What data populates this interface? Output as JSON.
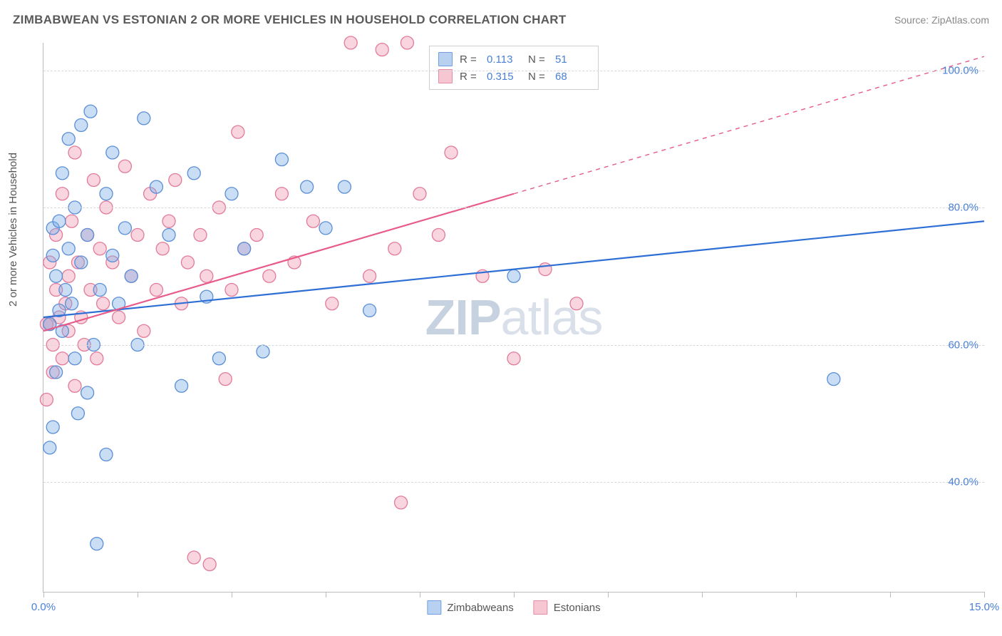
{
  "title": "ZIMBABWEAN VS ESTONIAN 2 OR MORE VEHICLES IN HOUSEHOLD CORRELATION CHART",
  "source": "Source: ZipAtlas.com",
  "ylabel": "2 or more Vehicles in Household",
  "watermark_bold": "ZIP",
  "watermark_light": "atlas",
  "chart": {
    "type": "scatter-with-regression",
    "background_color": "#ffffff",
    "grid_color": "#d8d8d8",
    "axis_color": "#bdbdbd",
    "tick_label_color": "#4a80d8",
    "xlim": [
      0.0,
      15.0
    ],
    "ylim": [
      24.0,
      104.0
    ],
    "x_ticks": [
      0.0,
      1.5,
      3.0,
      4.5,
      6.0,
      7.5,
      9.0,
      10.5,
      12.0,
      13.5,
      15.0
    ],
    "x_tick_labels": {
      "0": "0.0%",
      "15": "15.0%"
    },
    "y_grid": [
      40.0,
      60.0,
      80.0,
      100.0
    ],
    "y_tick_labels": [
      "40.0%",
      "60.0%",
      "80.0%",
      "100.0%"
    ]
  },
  "top_legend": [
    {
      "fill": "#b8d1f0",
      "stroke": "#6f9fe0",
      "r_label": "R =",
      "r_value": "0.113",
      "n_label": "N =",
      "n_value": "51"
    },
    {
      "fill": "#f6c6d3",
      "stroke": "#e68aa5",
      "r_label": "R =",
      "r_value": "0.315",
      "n_label": "N =",
      "n_value": "68"
    }
  ],
  "bottom_legend": [
    {
      "fill": "#b8d1f0",
      "stroke": "#6f9fe0",
      "label": "Zimbabweans"
    },
    {
      "fill": "#f6c6d3",
      "stroke": "#e68aa5",
      "label": "Estonians"
    }
  ],
  "series": {
    "zimbabweans": {
      "fill": "rgba(120,170,230,0.40)",
      "stroke": "#5b8fd6",
      "stroke_width": 1.3,
      "radius": 9,
      "points": [
        [
          0.1,
          63
        ],
        [
          0.1,
          45
        ],
        [
          0.15,
          48
        ],
        [
          0.15,
          73
        ],
        [
          0.15,
          77
        ],
        [
          0.2,
          56
        ],
        [
          0.2,
          70
        ],
        [
          0.25,
          65
        ],
        [
          0.25,
          78
        ],
        [
          0.3,
          85
        ],
        [
          0.3,
          62
        ],
        [
          0.35,
          68
        ],
        [
          0.4,
          90
        ],
        [
          0.4,
          74
        ],
        [
          0.45,
          66
        ],
        [
          0.5,
          58
        ],
        [
          0.5,
          80
        ],
        [
          0.55,
          50
        ],
        [
          0.6,
          92
        ],
        [
          0.6,
          72
        ],
        [
          0.7,
          76
        ],
        [
          0.7,
          53
        ],
        [
          0.75,
          94
        ],
        [
          0.8,
          60
        ],
        [
          0.85,
          31
        ],
        [
          0.9,
          68
        ],
        [
          1.0,
          82
        ],
        [
          1.0,
          44
        ],
        [
          1.1,
          88
        ],
        [
          1.1,
          73
        ],
        [
          1.2,
          66
        ],
        [
          1.3,
          77
        ],
        [
          1.4,
          70
        ],
        [
          1.5,
          60
        ],
        [
          1.6,
          93
        ],
        [
          1.8,
          83
        ],
        [
          2.0,
          76
        ],
        [
          2.2,
          54
        ],
        [
          2.4,
          85
        ],
        [
          2.6,
          67
        ],
        [
          2.8,
          58
        ],
        [
          3.0,
          82
        ],
        [
          3.2,
          74
        ],
        [
          3.5,
          59
        ],
        [
          3.8,
          87
        ],
        [
          4.2,
          83
        ],
        [
          4.5,
          77
        ],
        [
          4.8,
          83
        ],
        [
          5.2,
          65
        ],
        [
          7.5,
          70
        ],
        [
          12.6,
          55
        ]
      ],
      "regression": {
        "y_at_x0": 64.0,
        "y_at_x15": 78.0,
        "color": "#2e6fd6",
        "width": 2.2
      }
    },
    "estonians": {
      "fill": "rgba(240,150,175,0.40)",
      "stroke": "#e27b9a",
      "stroke_width": 1.3,
      "radius": 9,
      "points": [
        [
          0.05,
          52
        ],
        [
          0.05,
          63
        ],
        [
          0.1,
          63
        ],
        [
          0.1,
          72
        ],
        [
          0.15,
          56
        ],
        [
          0.15,
          60
        ],
        [
          0.2,
          68
        ],
        [
          0.2,
          76
        ],
        [
          0.25,
          64
        ],
        [
          0.3,
          82
        ],
        [
          0.3,
          58
        ],
        [
          0.35,
          66
        ],
        [
          0.4,
          70
        ],
        [
          0.4,
          62
        ],
        [
          0.45,
          78
        ],
        [
          0.5,
          54
        ],
        [
          0.5,
          88
        ],
        [
          0.55,
          72
        ],
        [
          0.6,
          64
        ],
        [
          0.65,
          60
        ],
        [
          0.7,
          76
        ],
        [
          0.75,
          68
        ],
        [
          0.8,
          84
        ],
        [
          0.85,
          58
        ],
        [
          0.9,
          74
        ],
        [
          0.95,
          66
        ],
        [
          1.0,
          80
        ],
        [
          1.1,
          72
        ],
        [
          1.2,
          64
        ],
        [
          1.3,
          86
        ],
        [
          1.4,
          70
        ],
        [
          1.5,
          76
        ],
        [
          1.6,
          62
        ],
        [
          1.7,
          82
        ],
        [
          1.8,
          68
        ],
        [
          1.9,
          74
        ],
        [
          2.0,
          78
        ],
        [
          2.1,
          84
        ],
        [
          2.2,
          66
        ],
        [
          2.3,
          72
        ],
        [
          2.4,
          29
        ],
        [
          2.5,
          76
        ],
        [
          2.6,
          70
        ],
        [
          2.65,
          28
        ],
        [
          2.8,
          80
        ],
        [
          2.9,
          55
        ],
        [
          3.0,
          68
        ],
        [
          3.1,
          91
        ],
        [
          3.2,
          74
        ],
        [
          3.4,
          76
        ],
        [
          3.6,
          70
        ],
        [
          3.8,
          82
        ],
        [
          4.0,
          72
        ],
        [
          4.3,
          78
        ],
        [
          4.6,
          66
        ],
        [
          4.9,
          104
        ],
        [
          5.2,
          70
        ],
        [
          5.4,
          103
        ],
        [
          5.6,
          74
        ],
        [
          5.7,
          37
        ],
        [
          5.8,
          104
        ],
        [
          6.0,
          82
        ],
        [
          6.3,
          76
        ],
        [
          6.5,
          88
        ],
        [
          7.0,
          70
        ],
        [
          7.5,
          58
        ],
        [
          8.0,
          71
        ],
        [
          8.5,
          66
        ]
      ],
      "regression": {
        "y_at_x0": 62.0,
        "y_at_xmax": 82.0,
        "x_solid_max": 7.5,
        "extrapolated_y_at_x15": 102.0,
        "color": "#e85a8a",
        "width": 2.2
      }
    }
  }
}
